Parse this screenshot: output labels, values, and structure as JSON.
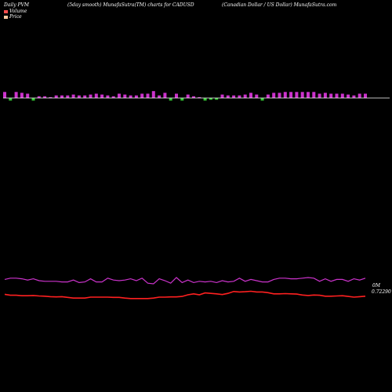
{
  "header": {
    "left": "Daily PVM",
    "middle": "(5day smooth) MunafaSutra(TM) charts for CADUSD",
    "right": "(Canadian  Dollar / US Dollar) MunafaSutra.com"
  },
  "legend": [
    {
      "label": "Volume",
      "color": "#ff4d4d"
    },
    {
      "label": "Price",
      "color": "#ffc8a0"
    }
  ],
  "colors": {
    "background": "#000000",
    "volume_up": "#cc33cc",
    "volume_down": "#33cc33",
    "volume_line": "#cc33cc",
    "price_line": "#ff2020",
    "baseline": "#ffffff"
  },
  "chart_data": {
    "type": "bar",
    "volume_axis_label": "0M",
    "price_label": "0.72290",
    "volume_bars": [
      {
        "h": 7,
        "dir": "up"
      },
      {
        "h": 3,
        "dir": "down"
      },
      {
        "h": 7,
        "dir": "up"
      },
      {
        "h": 6,
        "dir": "up"
      },
      {
        "h": 5,
        "dir": "up"
      },
      {
        "h": 3,
        "dir": "down"
      },
      {
        "h": 2,
        "dir": "up"
      },
      {
        "h": 2,
        "dir": "up"
      },
      {
        "h": 1,
        "dir": "up"
      },
      {
        "h": 3,
        "dir": "up"
      },
      {
        "h": 3,
        "dir": "up"
      },
      {
        "h": 3,
        "dir": "up"
      },
      {
        "h": 4,
        "dir": "up"
      },
      {
        "h": 3,
        "dir": "up"
      },
      {
        "h": 3,
        "dir": "up"
      },
      {
        "h": 4,
        "dir": "up"
      },
      {
        "h": 5,
        "dir": "up"
      },
      {
        "h": 4,
        "dir": "up"
      },
      {
        "h": 3,
        "dir": "up"
      },
      {
        "h": 2,
        "dir": "up"
      },
      {
        "h": 5,
        "dir": "up"
      },
      {
        "h": 4,
        "dir": "up"
      },
      {
        "h": 3,
        "dir": "up"
      },
      {
        "h": 3,
        "dir": "up"
      },
      {
        "h": 5,
        "dir": "up"
      },
      {
        "h": 5,
        "dir": "up"
      },
      {
        "h": 8,
        "dir": "up"
      },
      {
        "h": 3,
        "dir": "up"
      },
      {
        "h": 6,
        "dir": "up"
      },
      {
        "h": 3,
        "dir": "down"
      },
      {
        "h": 5,
        "dir": "up"
      },
      {
        "h": 3,
        "dir": "down"
      },
      {
        "h": 4,
        "dir": "up"
      },
      {
        "h": 2,
        "dir": "up"
      },
      {
        "h": 1,
        "dir": "up"
      },
      {
        "h": 3,
        "dir": "down"
      },
      {
        "h": 2,
        "dir": "down"
      },
      {
        "h": 2,
        "dir": "down"
      },
      {
        "h": 4,
        "dir": "up"
      },
      {
        "h": 3,
        "dir": "up"
      },
      {
        "h": 3,
        "dir": "up"
      },
      {
        "h": 3,
        "dir": "up"
      },
      {
        "h": 4,
        "dir": "up"
      },
      {
        "h": 6,
        "dir": "up"
      },
      {
        "h": 4,
        "dir": "up"
      },
      {
        "h": 3,
        "dir": "down"
      },
      {
        "h": 4,
        "dir": "up"
      },
      {
        "h": 6,
        "dir": "up"
      },
      {
        "h": 6,
        "dir": "up"
      },
      {
        "h": 7,
        "dir": "up"
      },
      {
        "h": 7,
        "dir": "up"
      },
      {
        "h": 7,
        "dir": "up"
      },
      {
        "h": 7,
        "dir": "up"
      },
      {
        "h": 7,
        "dir": "up"
      },
      {
        "h": 7,
        "dir": "up"
      },
      {
        "h": 5,
        "dir": "up"
      },
      {
        "h": 6,
        "dir": "up"
      },
      {
        "h": 5,
        "dir": "up"
      },
      {
        "h": 5,
        "dir": "up"
      },
      {
        "h": 5,
        "dir": "up"
      },
      {
        "h": 4,
        "dir": "up"
      },
      {
        "h": 3,
        "dir": "up"
      },
      {
        "h": 5,
        "dir": "up"
      },
      {
        "h": 5,
        "dir": "up"
      }
    ],
    "volume_line": [
      67,
      69,
      69,
      68,
      66,
      68,
      65,
      64,
      64,
      64,
      63,
      63,
      66,
      62,
      63,
      68,
      63,
      63,
      69,
      66,
      65,
      66,
      68,
      65,
      69,
      61,
      60,
      68,
      65,
      61,
      70,
      62,
      66,
      62,
      64,
      63,
      64,
      62,
      65,
      63,
      64,
      69,
      64,
      67,
      65,
      63,
      63,
      67,
      69,
      69,
      68,
      68,
      69,
      70,
      69,
      64,
      68,
      64,
      67,
      67,
      64,
      68,
      66,
      69
    ],
    "price_line": [
      0.7392,
      0.7388,
      0.7388,
      0.7386,
      0.7386,
      0.7387,
      0.7385,
      0.7384,
      0.7382,
      0.7381,
      0.7382,
      0.7379,
      0.7376,
      0.7376,
      0.7376,
      0.738,
      0.738,
      0.738,
      0.738,
      0.7379,
      0.7379,
      0.7376,
      0.7374,
      0.7374,
      0.7374,
      0.7374,
      0.7376,
      0.738,
      0.738,
      0.7381,
      0.7381,
      0.7383,
      0.739,
      0.7394,
      0.739,
      0.7398,
      0.7396,
      0.7394,
      0.7391,
      0.7396,
      0.7404,
      0.7402,
      0.7403,
      0.7405,
      0.7402,
      0.7402,
      0.7399,
      0.7394,
      0.7394,
      0.7395,
      0.7394,
      0.7393,
      0.7389,
      0.7387,
      0.7389,
      0.7388,
      0.7384,
      0.7384,
      0.7385,
      0.7386,
      0.7383,
      0.738,
      0.7382,
      0.7384
    ]
  }
}
